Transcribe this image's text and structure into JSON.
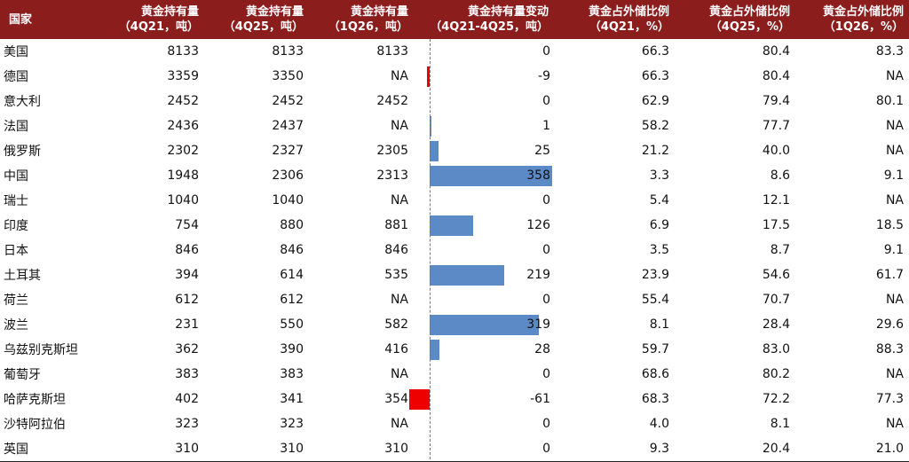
{
  "chart_data": {
    "type": "table",
    "columns": [
      {
        "l1": "国家",
        "l2": ""
      },
      {
        "l1": "黄金持有量",
        "l2": "（4Q21，吨）"
      },
      {
        "l1": "黄金持有量",
        "l2": "（4Q25，吨）"
      },
      {
        "l1": "黄金持有量",
        "l2": "（1Q26，吨）"
      },
      {
        "l1": "黄金持有量变动",
        "l2": "（4Q21-4Q25，吨）"
      },
      {
        "l1": "黄金占外储比例",
        "l2": "（4Q21，%）"
      },
      {
        "l1": "黄金占外储比例",
        "l2": "（4Q25，%）"
      },
      {
        "l1": "黄金占外储比例",
        "l2": "（1Q26，%）"
      }
    ],
    "rows": [
      {
        "country": "美国",
        "h21": "8133",
        "h25": "8133",
        "h26": "8133",
        "change": 0,
        "r21": "66.3",
        "r25": "80.4",
        "r26": "83.3"
      },
      {
        "country": "德国",
        "h21": "3359",
        "h25": "3350",
        "h26": "NA",
        "change": -9,
        "r21": "66.3",
        "r25": "80.4",
        "r26": "NA"
      },
      {
        "country": "意大利",
        "h21": "2452",
        "h25": "2452",
        "h26": "2452",
        "change": 0,
        "r21": "62.9",
        "r25": "79.4",
        "r26": "80.1"
      },
      {
        "country": "法国",
        "h21": "2436",
        "h25": "2437",
        "h26": "NA",
        "change": 1,
        "r21": "58.2",
        "r25": "77.7",
        "r26": "NA"
      },
      {
        "country": "俄罗斯",
        "h21": "2302",
        "h25": "2327",
        "h26": "2305",
        "change": 25,
        "r21": "21.2",
        "r25": "40.0",
        "r26": "NA"
      },
      {
        "country": "中国",
        "h21": "1948",
        "h25": "2306",
        "h26": "2313",
        "change": 358,
        "r21": "3.3",
        "r25": "8.6",
        "r26": "9.1"
      },
      {
        "country": "瑞士",
        "h21": "1040",
        "h25": "1040",
        "h26": "NA",
        "change": 0,
        "r21": "5.4",
        "r25": "12.1",
        "r26": "NA"
      },
      {
        "country": "印度",
        "h21": "754",
        "h25": "880",
        "h26": "881",
        "change": 126,
        "r21": "6.9",
        "r25": "17.5",
        "r26": "18.5"
      },
      {
        "country": "日本",
        "h21": "846",
        "h25": "846",
        "h26": "846",
        "change": 0,
        "r21": "3.5",
        "r25": "8.7",
        "r26": "9.1"
      },
      {
        "country": "土耳其",
        "h21": "394",
        "h25": "614",
        "h26": "535",
        "change": 219,
        "r21": "23.9",
        "r25": "54.6",
        "r26": "61.7"
      },
      {
        "country": "荷兰",
        "h21": "612",
        "h25": "612",
        "h26": "NA",
        "change": 0,
        "r21": "55.4",
        "r25": "70.7",
        "r26": "NA"
      },
      {
        "country": "波兰",
        "h21": "231",
        "h25": "550",
        "h26": "582",
        "change": 319,
        "r21": "8.1",
        "r25": "28.4",
        "r26": "29.6"
      },
      {
        "country": "乌兹别克斯坦",
        "h21": "362",
        "h25": "390",
        "h26": "416",
        "change": 28,
        "r21": "59.7",
        "r25": "83.0",
        "r26": "88.3"
      },
      {
        "country": "葡萄牙",
        "h21": "383",
        "h25": "383",
        "h26": "NA",
        "change": 0,
        "r21": "68.6",
        "r25": "80.2",
        "r26": "NA"
      },
      {
        "country": "哈萨克斯坦",
        "h21": "402",
        "h25": "341",
        "h26": "354",
        "change": -61,
        "r21": "68.3",
        "r25": "72.2",
        "r26": "77.3"
      },
      {
        "country": "沙特阿拉伯",
        "h21": "323",
        "h25": "323",
        "h26": "NA",
        "change": 0,
        "r21": "4.0",
        "r25": "8.1",
        "r26": "NA"
      },
      {
        "country": "英国",
        "h21": "310",
        "h25": "310",
        "h26": "310",
        "change": 0,
        "r21": "9.3",
        "r25": "20.4",
        "r26": "21.0"
      }
    ],
    "bar_scale_max": 358,
    "colors": {
      "header_bg": "#8b1d1d",
      "positive_bar": "#5b8ac6",
      "negative_bar": "#ee0000"
    }
  }
}
